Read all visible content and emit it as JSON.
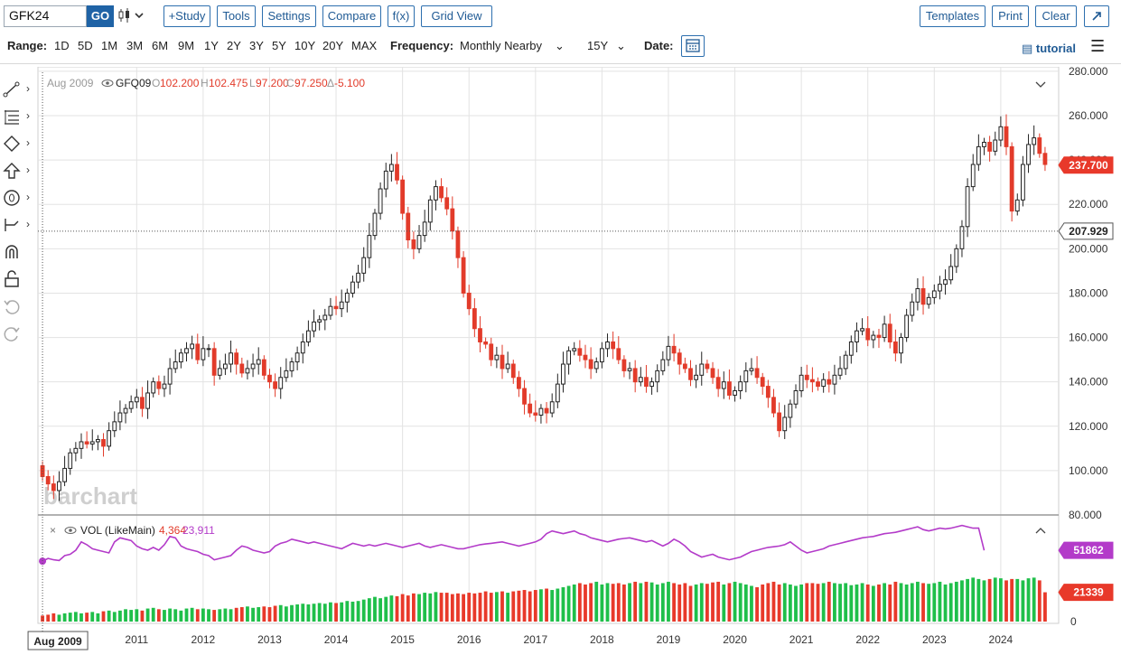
{
  "toolbar": {
    "symbol": "GFK24",
    "go_label": "GO",
    "chart_type_icon": "candlestick-icon",
    "buttons": [
      "+Study",
      "Tools",
      "Settings",
      "Compare",
      "f(x)",
      "Grid View"
    ],
    "right_buttons": [
      "Templates",
      "Print",
      "Clear"
    ],
    "expand_icon": "expand-icon"
  },
  "rangebar": {
    "range_label": "Range:",
    "ranges": [
      "1D",
      "5D",
      "1M",
      "3M",
      "6M",
      "9M",
      "1Y",
      "2Y",
      "3Y",
      "5Y",
      "10Y",
      "20Y",
      "MAX"
    ],
    "frequency_label": "Frequency:",
    "frequency_value": "Monthly Nearby",
    "period_value": "15Y",
    "date_label": "Date:",
    "tutorial_label": "tutorial"
  },
  "legend": {
    "date": "Aug 2009",
    "symbol": "GFQ09",
    "ohlc": [
      {
        "k": "O",
        "v": "102.200"
      },
      {
        "k": "H",
        "v": "102.475"
      },
      {
        "k": "L",
        "v": "97.200"
      },
      {
        "k": "C",
        "v": "97.250"
      },
      {
        "k": "Δ",
        "v": "-5.100"
      }
    ]
  },
  "volume_legend": {
    "label": "VOL (LikeMain)",
    "v1": "4,364",
    "v2": "23,911"
  },
  "watermark": "barchart",
  "colors": {
    "up": "#222222",
    "down": "#e23b2a",
    "vol_up": "#1fbf4a",
    "vol_down": "#e8392a",
    "avg": "#b33bc9",
    "accent": "#1f63a6"
  },
  "chart_data": {
    "type": "candlestick",
    "price_axis": {
      "ticks": [
        "80.000",
        "100.000",
        "120.000",
        "140.000",
        "160.000",
        "180.000",
        "200.000",
        "220.000",
        "240.000",
        "260.000",
        "280.000"
      ],
      "range": [
        80,
        282
      ]
    },
    "last_price_label": "237.700",
    "crosshair_label": "207.929",
    "crosshair_value": 207.929,
    "volume_axis": {
      "zero_label": "0",
      "avg_label": "51862",
      "last_label": "21339",
      "avg_value": 51862,
      "last_value": 21339,
      "max": 75000
    },
    "x_labels": [
      "2011",
      "2012",
      "2013",
      "2014",
      "2015",
      "2016",
      "2017",
      "2018",
      "2019",
      "2020",
      "2021",
      "2022",
      "2023",
      "2024"
    ],
    "crosshair_x_label": "Aug 2009",
    "start_month": "2009-08",
    "closes": [
      97.3,
      94,
      91,
      95,
      101,
      108,
      110,
      113,
      112,
      113,
      114,
      111,
      118,
      122,
      126,
      128,
      131,
      133,
      128,
      135,
      140,
      137,
      139,
      146,
      149,
      153,
      155,
      157,
      150,
      155,
      155,
      143,
      146,
      148,
      153,
      148,
      144,
      146,
      148,
      150,
      143,
      140,
      137,
      142,
      145,
      149,
      153,
      158,
      163,
      167,
      168,
      170,
      174,
      173,
      176,
      180,
      185,
      189,
      196,
      206,
      216,
      227,
      235,
      238,
      231,
      216,
      204,
      200,
      206,
      212,
      222,
      228,
      223,
      218,
      208,
      196,
      180,
      173,
      164,
      158,
      157,
      150,
      152,
      146,
      148,
      142,
      137,
      130,
      126,
      125,
      128,
      126,
      131,
      139,
      148,
      154,
      155,
      152,
      150,
      146,
      149,
      155,
      158,
      155,
      150,
      145,
      146,
      140,
      142,
      138,
      140,
      145,
      150,
      156,
      153,
      148,
      146,
      141,
      143,
      148,
      146,
      142,
      137,
      140,
      134,
      136,
      140,
      145,
      146,
      142,
      138,
      133,
      126,
      118,
      124,
      130,
      136,
      143,
      141,
      140,
      138,
      141,
      139,
      143,
      146,
      152,
      158,
      163,
      164,
      159,
      161,
      160,
      166,
      158,
      153,
      160,
      170,
      176,
      182,
      175,
      178,
      181,
      184,
      186,
      192,
      200,
      210,
      228,
      238,
      246,
      248,
      244,
      249,
      255,
      246,
      217,
      222,
      238,
      247,
      250,
      243,
      238
    ],
    "volume": [
      4364,
      5000,
      6000,
      5000,
      6000,
      6500,
      7000,
      6000,
      6500,
      7000,
      6000,
      7500,
      8000,
      7000,
      8000,
      9000,
      8500,
      9000,
      8000,
      9500,
      10000,
      9000,
      8500,
      9500,
      9000,
      8000,
      9500,
      10000,
      9000,
      9500,
      9000,
      8500,
      9000,
      9500,
      9000,
      10000,
      10500,
      11000,
      10000,
      10500,
      11000,
      10500,
      11500,
      12000,
      11000,
      12000,
      12500,
      13000,
      12500,
      13000,
      13500,
      13000,
      14000,
      13500,
      14000,
      15000,
      14500,
      15000,
      16000,
      17000,
      18000,
      17000,
      18000,
      19000,
      18500,
      20000,
      19000,
      20500,
      20000,
      21000,
      20500,
      21500,
      21000,
      21000,
      20000,
      20500,
      20000,
      21000,
      20500,
      21000,
      22000,
      21000,
      21500,
      22000,
      21000,
      22000,
      22500,
      23000,
      22000,
      23000,
      23500,
      24000,
      23000,
      24000,
      25000,
      26000,
      27000,
      28000,
      27000,
      28000,
      29000,
      27000,
      28000,
      27500,
      28000,
      27000,
      28000,
      29000,
      28000,
      29000,
      28500,
      27000,
      28000,
      29000,
      28000,
      27000,
      28000,
      26000,
      27000,
      28000,
      27500,
      28500,
      29000,
      27000,
      28000,
      29000,
      28000,
      27000,
      26000,
      25000,
      27000,
      28000,
      29000,
      27000,
      28000,
      27000,
      26000,
      27000,
      28000,
      28000,
      27500,
      28000,
      29000,
      28000,
      27500,
      28000,
      26500,
      27000,
      28000,
      27000,
      26000,
      27000,
      28000,
      27000,
      29000,
      28000,
      27000,
      28000,
      29000,
      28000,
      27500,
      28000,
      29000,
      27000,
      28000,
      29000,
      30000,
      31000,
      32000,
      31000,
      30000,
      31000,
      32000,
      31500,
      30000,
      31000,
      31000,
      30000,
      31500,
      32000,
      30000,
      21339
    ],
    "avg_volume": [
      44000,
      46000,
      45000,
      44500,
      48000,
      49000,
      52000,
      58000,
      56000,
      53000,
      52000,
      51000,
      50000,
      58000,
      61000,
      60000,
      59000,
      55000,
      53000,
      52000,
      54000,
      52000,
      56000,
      62000,
      61000,
      55000,
      53000,
      52000,
      51000,
      49000,
      48000,
      45000,
      46000,
      47000,
      48000,
      52000,
      55000,
      54000,
      52000,
      51000,
      50000,
      51000,
      55000,
      57000,
      58000,
      60000,
      59000,
      58000,
      57000,
      58000,
      57000,
      56000,
      55000,
      54000,
      53000,
      55000,
      57000,
      56000,
      55000,
      56000,
      55000,
      56000,
      57000,
      56000,
      55000,
      54000,
      55000,
      56000,
      57000,
      55000,
      54000,
      55000,
      56000,
      55000,
      54000,
      53000,
      53000,
      54000,
      55000,
      56000,
      56500,
      57000,
      57500,
      58000,
      57000,
      56000,
      55000,
      56000,
      57000,
      58000,
      60000,
      64000,
      66000,
      65000,
      64000,
      65000,
      66000,
      64000,
      63000,
      61000,
      60000,
      59000,
      58000,
      59000,
      60000,
      60500,
      61000,
      60000,
      59000,
      58000,
      59000,
      57000,
      55000,
      57000,
      60000,
      58000,
      55000,
      51000,
      49000,
      47000,
      48000,
      49000,
      47000,
      46000,
      45000,
      46000,
      47000,
      49000,
      51000,
      52000,
      53000,
      54000,
      54500,
      55000,
      56000,
      58000,
      55000,
      52000,
      50000,
      51000,
      52000,
      53000,
      55000,
      56000,
      57000,
      58000,
      59000,
      60000,
      61000,
      61500,
      62000,
      63000,
      64000,
      64500,
      65000,
      66000,
      67000,
      68000,
      69000,
      67000,
      66000,
      67000,
      68000,
      67500,
      68000,
      69000,
      70000,
      69000,
      68000,
      68000,
      51862
    ],
    "highlight_point_label": "Aug 2009"
  }
}
